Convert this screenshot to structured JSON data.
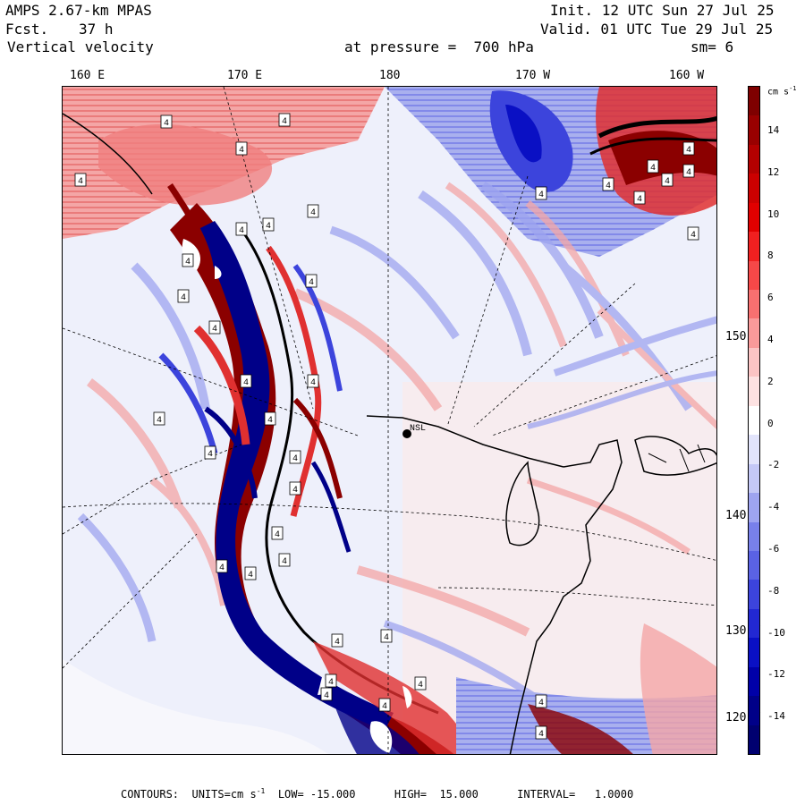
{
  "header": {
    "model": "AMPS 2.67-km MPAS",
    "forecast_label": "Fcst.",
    "forecast_value": "37 h",
    "field": "Vertical velocity",
    "init": "Init. 12 UTC Sun 27 Jul 25",
    "valid": "Valid. 01 UTC Tue 29 Jul 25",
    "level": "at pressure =  700 hPa",
    "smoothing": "sm= 6"
  },
  "longitude_labels": [
    "160 E",
    "170 E",
    "180",
    "170 W",
    "160 W"
  ],
  "latitude_labels": [
    "150 W",
    "140 W",
    "130 W",
    "120 W"
  ],
  "station_label": "NSL",
  "contour_label": "4",
  "colorbar": {
    "unit": "cm s",
    "unit_exp": "-1",
    "tick_labels": [
      "14",
      "12",
      "10",
      "8",
      "6",
      "4",
      "2",
      "0",
      "-2",
      "-4",
      "-6",
      "-8",
      "-10",
      "-12",
      "-14"
    ],
    "colors": [
      "#7f0000",
      "#990000",
      "#b30000",
      "#cc0000",
      "#e00000",
      "#f02020",
      "#f64848",
      "#f87070",
      "#f99a9a",
      "#fbc4c4",
      "#fde2e2",
      "#ffffff",
      "#e2e4fb",
      "#c4c8f6",
      "#9ea4f0",
      "#7880ea",
      "#5a62e4",
      "#3c44dc",
      "#2228d2",
      "#0a10c4",
      "#0000a8",
      "#000088",
      "#000070"
    ]
  },
  "footer": {
    "contours": "CONTOURS:  UNITS=cm s",
    "unit_exp": "-1",
    "low": "LOW= -15.000",
    "high": "HIGH=  15.000",
    "interval": "INTERVAL=   1.0000"
  },
  "colors": {
    "positive_strong": "#8b0000",
    "positive_mid": "#e03030",
    "positive_weak": "#f4a6a6",
    "neutral": "#eef0fb",
    "negative_weak": "#a9b0ee",
    "negative_mid": "#3c44dc",
    "negative_strong": "#000088"
  }
}
